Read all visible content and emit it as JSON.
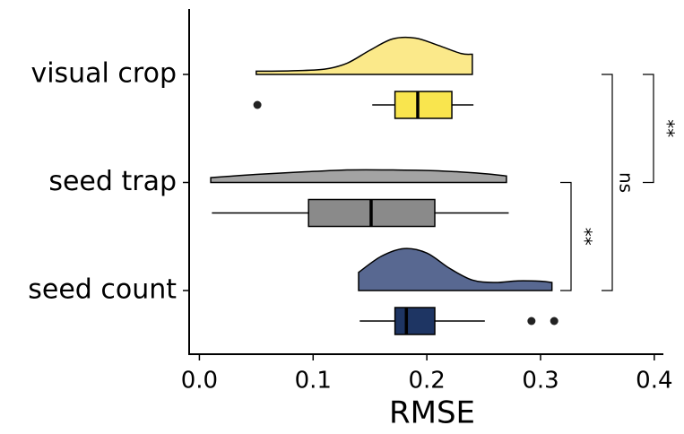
{
  "chart_data": {
    "type": "raincloud",
    "x_label": "RMSE",
    "categories": [
      "visual crop",
      "seed trap",
      "seed count"
    ],
    "xlim": [
      -0.009,
      0.408
    ],
    "xticks": [
      {
        "value": 0,
        "label": "0.0"
      },
      0.1,
      0.2,
      0.3,
      0.4
    ],
    "series": [
      {
        "name": "visual crop",
        "color": "#f9e54e",
        "violin_color": "#fbe98a",
        "whisker_low": 0.152,
        "q1": 0.172,
        "median": 0.192,
        "q3": 0.222,
        "whisker_high": 0.241,
        "outliers": [
          0.051
        ],
        "density": {
          "x": [
            0.05,
            0.08,
            0.11,
            0.13,
            0.15,
            0.17,
            0.19,
            0.21,
            0.23,
            0.24
          ],
          "y": [
            0.8,
            0.9,
            1.3,
            2.8,
            6.0,
            8.8,
            9.0,
            7.2,
            5.2,
            5.0
          ]
        }
      },
      {
        "name": "seed trap",
        "color": "#8a8a8a",
        "violin_color": "#a3a3a3",
        "whisker_low": 0.011,
        "q1": 0.096,
        "median": 0.151,
        "q3": 0.207,
        "whisker_high": 0.272,
        "outliers": [],
        "density": {
          "x": [
            0.01,
            0.05,
            0.09,
            0.13,
            0.17,
            0.21,
            0.25,
            0.27
          ],
          "y": [
            1.2,
            2.0,
            2.6,
            3.1,
            3.1,
            2.9,
            2.2,
            1.6
          ]
        }
      },
      {
        "name": "seed count",
        "color": "#1e3563",
        "violin_color": "#586891",
        "whisker_low": 0.141,
        "q1": 0.172,
        "median": 0.182,
        "q3": 0.207,
        "whisker_high": 0.251,
        "outliers": [
          0.292,
          0.312
        ],
        "density": {
          "x": [
            0.14,
            0.16,
            0.18,
            0.2,
            0.22,
            0.24,
            0.26,
            0.28,
            0.3,
            0.31
          ],
          "y": [
            4.5,
            8.5,
            10.4,
            9.3,
            5.5,
            2.6,
            2.0,
            2.4,
            2.3,
            2.0
          ]
        }
      }
    ],
    "comparisons": [
      {
        "pair": [
          "seed trap",
          "seed count"
        ],
        "label": "**"
      },
      {
        "pair": [
          "visual crop",
          "seed count"
        ],
        "label": "ns"
      },
      {
        "pair": [
          "visual crop",
          "seed trap"
        ],
        "label": "**"
      }
    ]
  }
}
